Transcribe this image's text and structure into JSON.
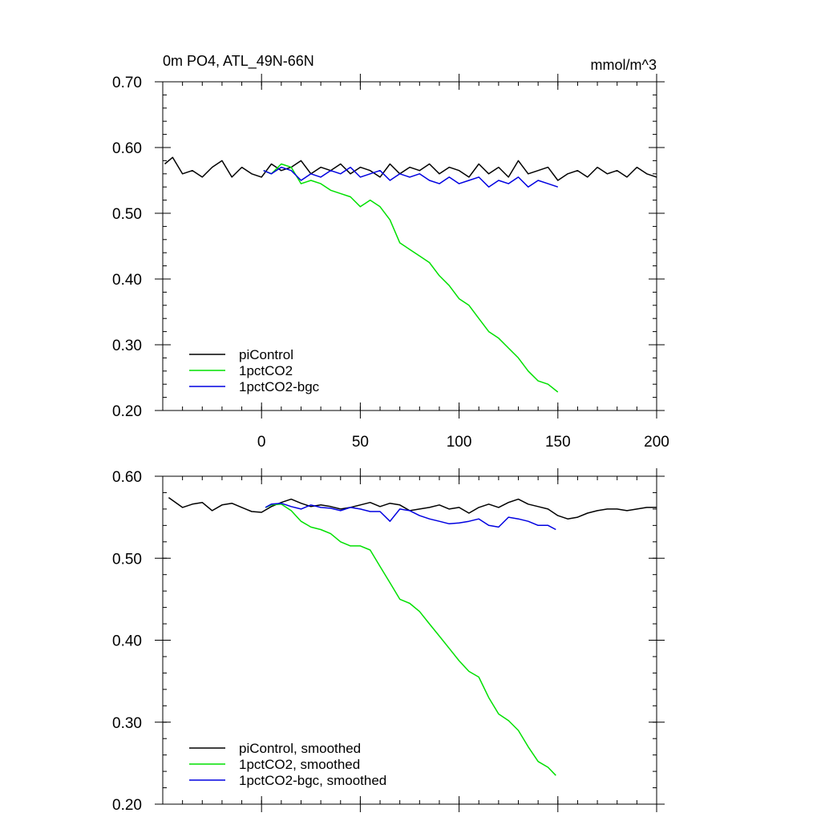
{
  "chart_data": [
    {
      "type": "line",
      "title": "0m PO4, ATL_49N-66N",
      "units": "mmol/m^3",
      "xlim": [
        -50,
        200
      ],
      "ylim": [
        0.2,
        0.7
      ],
      "xticks": [
        0,
        50,
        100,
        150,
        200
      ],
      "xtick_labels": [
        "0",
        "50",
        "100",
        "150",
        "200"
      ],
      "yticks": [
        0.2,
        0.3,
        0.4,
        0.5,
        0.6,
        0.7
      ],
      "ytick_labels": [
        "0.20",
        "0.30",
        "0.40",
        "0.50",
        "0.60",
        "0.70"
      ],
      "legend_position": "bottom-left",
      "series": [
        {
          "name": "piControl",
          "color": "#000000",
          "x": [
            -49,
            -45,
            -40,
            -35,
            -30,
            -25,
            -20,
            -15,
            -10,
            -5,
            0,
            5,
            10,
            15,
            20,
            25,
            30,
            35,
            40,
            45,
            50,
            55,
            60,
            65,
            70,
            75,
            80,
            85,
            90,
            95,
            100,
            105,
            110,
            115,
            120,
            125,
            130,
            135,
            140,
            145,
            150,
            155,
            160,
            165,
            170,
            175,
            180,
            185,
            190,
            195,
            200
          ],
          "y": [
            0.575,
            0.585,
            0.56,
            0.565,
            0.555,
            0.57,
            0.58,
            0.555,
            0.57,
            0.56,
            0.555,
            0.575,
            0.565,
            0.57,
            0.58,
            0.56,
            0.57,
            0.565,
            0.575,
            0.56,
            0.57,
            0.565,
            0.555,
            0.575,
            0.56,
            0.57,
            0.565,
            0.575,
            0.56,
            0.57,
            0.565,
            0.555,
            0.575,
            0.56,
            0.57,
            0.555,
            0.58,
            0.56,
            0.565,
            0.57,
            0.55,
            0.56,
            0.565,
            0.555,
            0.57,
            0.56,
            0.565,
            0.555,
            0.57,
            0.56,
            0.555
          ]
        },
        {
          "name": "1pctCO2",
          "color": "#00e000",
          "x": [
            1,
            5,
            10,
            15,
            20,
            25,
            30,
            35,
            40,
            45,
            50,
            55,
            60,
            65,
            70,
            75,
            80,
            85,
            90,
            95,
            100,
            105,
            110,
            115,
            120,
            125,
            130,
            135,
            140,
            145,
            150
          ],
          "y": [
            0.565,
            0.56,
            0.575,
            0.57,
            0.545,
            0.55,
            0.545,
            0.535,
            0.53,
            0.525,
            0.51,
            0.52,
            0.51,
            0.49,
            0.455,
            0.445,
            0.435,
            0.425,
            0.405,
            0.39,
            0.37,
            0.36,
            0.34,
            0.32,
            0.31,
            0.295,
            0.28,
            0.26,
            0.245,
            0.24,
            0.228
          ]
        },
        {
          "name": "1pctCO2-bgc",
          "color": "#0000e0",
          "x": [
            1,
            5,
            10,
            15,
            20,
            25,
            30,
            35,
            40,
            45,
            50,
            55,
            60,
            65,
            70,
            75,
            80,
            85,
            90,
            95,
            100,
            105,
            110,
            115,
            120,
            125,
            130,
            135,
            140,
            145,
            150
          ],
          "y": [
            0.565,
            0.56,
            0.57,
            0.565,
            0.55,
            0.56,
            0.555,
            0.565,
            0.56,
            0.57,
            0.555,
            0.56,
            0.565,
            0.55,
            0.56,
            0.555,
            0.56,
            0.55,
            0.545,
            0.555,
            0.545,
            0.55,
            0.555,
            0.54,
            0.55,
            0.545,
            0.555,
            0.54,
            0.55,
            0.545,
            0.54
          ]
        }
      ]
    },
    {
      "type": "line",
      "xlim": [
        -50,
        200
      ],
      "ylim": [
        0.2,
        0.6
      ],
      "xticks": [
        0,
        50,
        100,
        150,
        200
      ],
      "yticks": [
        0.2,
        0.3,
        0.4,
        0.5,
        0.6
      ],
      "ytick_labels": [
        "0.20",
        "0.30",
        "0.40",
        "0.50",
        "0.60"
      ],
      "legend_position": "bottom-left",
      "series": [
        {
          "name": "piControl, smoothed",
          "color": "#000000",
          "x": [
            -47,
            -40,
            -35,
            -30,
            -25,
            -20,
            -15,
            -10,
            -5,
            0,
            5,
            10,
            15,
            20,
            25,
            30,
            35,
            40,
            45,
            50,
            55,
            60,
            65,
            70,
            75,
            80,
            85,
            90,
            95,
            100,
            105,
            110,
            115,
            120,
            125,
            130,
            135,
            140,
            145,
            150,
            155,
            160,
            165,
            170,
            175,
            180,
            185,
            190,
            195,
            200
          ],
          "y": [
            0.574,
            0.562,
            0.566,
            0.568,
            0.558,
            0.565,
            0.567,
            0.562,
            0.557,
            0.556,
            0.563,
            0.568,
            0.572,
            0.567,
            0.563,
            0.565,
            0.563,
            0.56,
            0.562,
            0.565,
            0.568,
            0.563,
            0.567,
            0.565,
            0.558,
            0.56,
            0.562,
            0.565,
            0.56,
            0.562,
            0.555,
            0.562,
            0.566,
            0.562,
            0.568,
            0.572,
            0.566,
            0.563,
            0.56,
            0.552,
            0.548,
            0.55,
            0.555,
            0.558,
            0.56,
            0.56,
            0.558,
            0.56,
            0.562,
            0.562
          ]
        },
        {
          "name": "1pctCO2, smoothed",
          "color": "#00e000",
          "x": [
            2,
            5,
            10,
            15,
            20,
            25,
            30,
            35,
            40,
            45,
            50,
            55,
            60,
            65,
            70,
            75,
            80,
            85,
            90,
            95,
            100,
            105,
            110,
            115,
            120,
            125,
            130,
            135,
            140,
            145,
            149
          ],
          "y": [
            0.562,
            0.565,
            0.566,
            0.558,
            0.545,
            0.538,
            0.535,
            0.53,
            0.52,
            0.515,
            0.515,
            0.51,
            0.49,
            0.47,
            0.45,
            0.445,
            0.435,
            0.42,
            0.405,
            0.39,
            0.375,
            0.362,
            0.355,
            0.33,
            0.31,
            0.302,
            0.29,
            0.27,
            0.252,
            0.245,
            0.235
          ]
        },
        {
          "name": "1pctCO2-bgc, smoothed",
          "color": "#0000e0",
          "x": [
            2,
            5,
            10,
            15,
            20,
            25,
            30,
            35,
            40,
            45,
            50,
            55,
            60,
            65,
            70,
            75,
            80,
            85,
            90,
            95,
            100,
            105,
            110,
            115,
            120,
            125,
            130,
            135,
            140,
            145,
            149
          ],
          "y": [
            0.562,
            0.566,
            0.567,
            0.563,
            0.56,
            0.565,
            0.562,
            0.561,
            0.558,
            0.562,
            0.56,
            0.557,
            0.557,
            0.545,
            0.56,
            0.558,
            0.552,
            0.548,
            0.545,
            0.542,
            0.543,
            0.545,
            0.548,
            0.54,
            0.538,
            0.55,
            0.548,
            0.545,
            0.54,
            0.54,
            0.535
          ]
        }
      ]
    }
  ]
}
